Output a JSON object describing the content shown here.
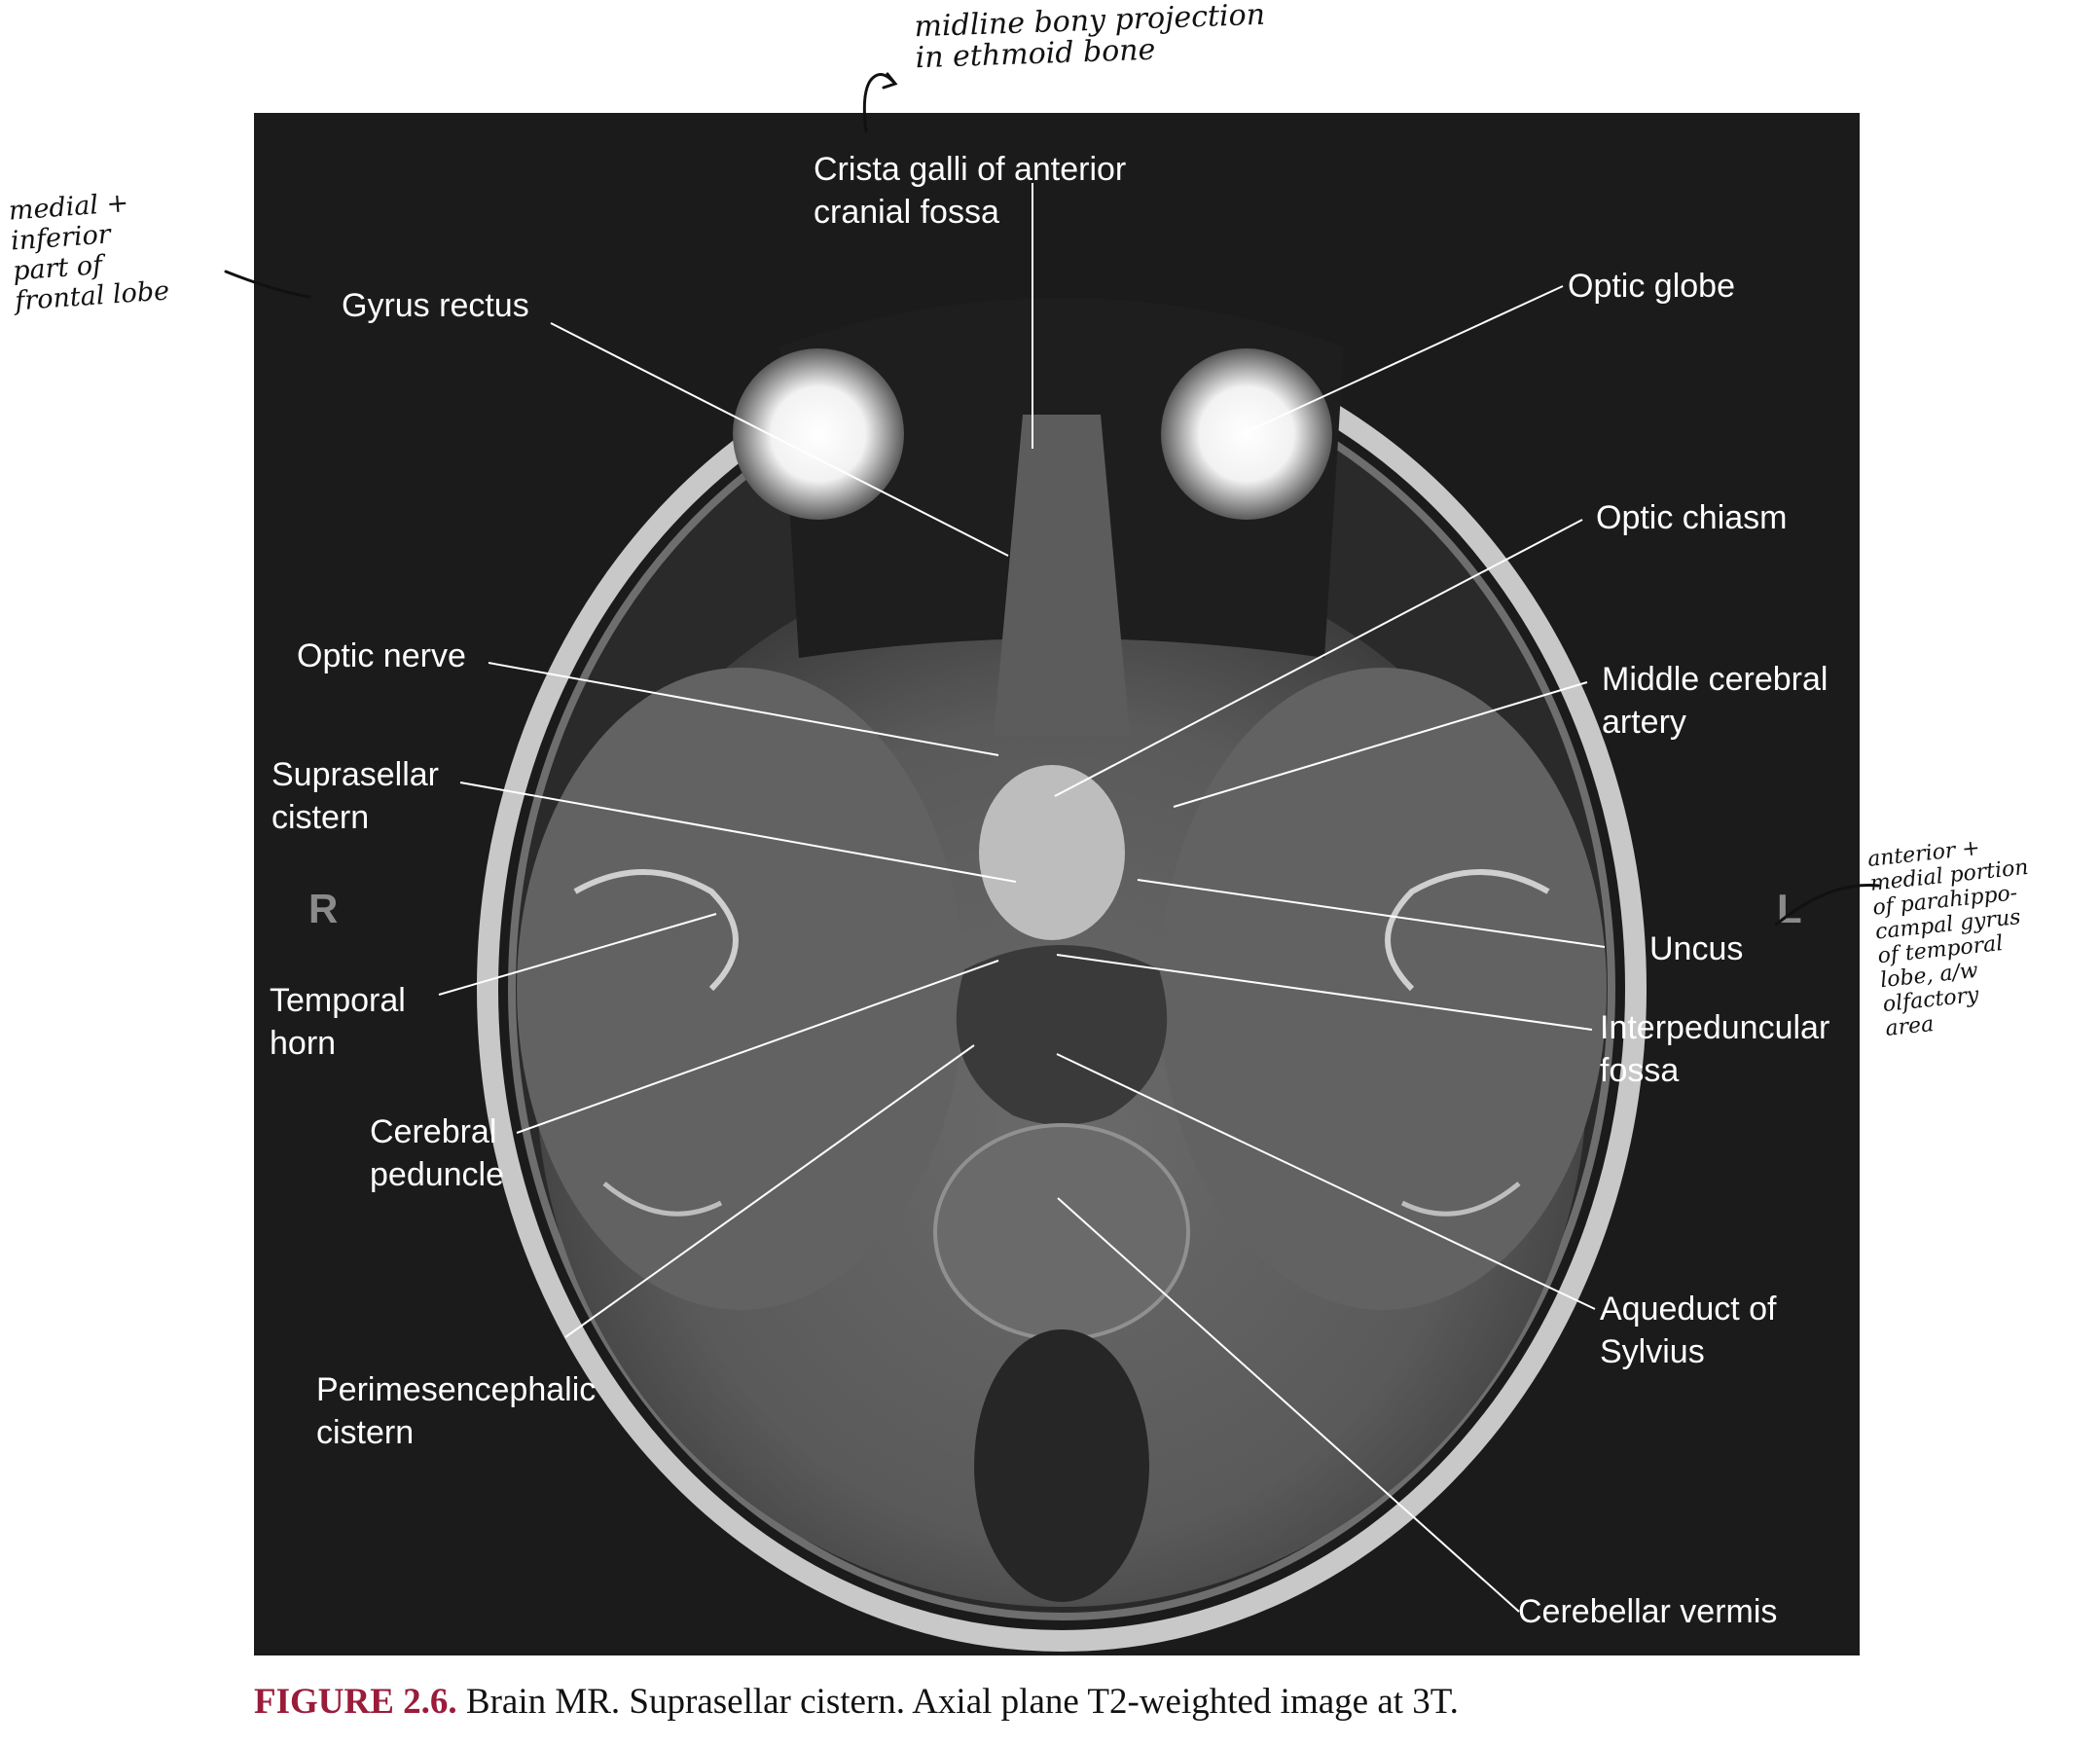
{
  "figure": {
    "side_markers": {
      "right": "R",
      "left": "L"
    },
    "labels": {
      "crista_galli": "Crista galli of anterior\ncranial fossa",
      "gyrus_rectus": "Gyrus rectus",
      "optic_globe": "Optic globe",
      "optic_chiasm": "Optic chiasm",
      "optic_nerve": "Optic nerve",
      "middle_cerebral_artery": "Middle cerebral\nartery",
      "suprasellar_cistern": "Suprasellar\ncistern",
      "uncus": "Uncus",
      "temporal_horn": "Temporal\nhorn",
      "interpeduncular_fossa": "Interpeduncular\nfossa",
      "cerebral_peduncle": "Cerebral\npeduncle",
      "aqueduct_of_sylvius": "Aqueduct of\nSylvius",
      "perimesencephalic_cistern": "Perimesencephalic\ncistern",
      "cerebellar_vermis": "Cerebellar vermis"
    },
    "colors": {
      "panel_background": "#1b1b1b",
      "label_text": "#ffffff",
      "caption_number": "#9b1b3a",
      "ink": "#111111"
    }
  },
  "caption": {
    "number": "FIGURE 2.6.",
    "text": " Brain MR. Suprasellar cistern. Axial plane T2-weighted image at 3T."
  },
  "handwritten_notes": {
    "crista_galli_note": "midline bony projection\nin ethmoid bone",
    "gyrus_rectus_note": "medial +\ninferior\npart of\nfrontal lobe",
    "uncus_note": "anterior +\nmedial portion\nof parahippo-\ncampal gyrus\nof temporal\nlobe, a/w\nolfactory\narea"
  }
}
